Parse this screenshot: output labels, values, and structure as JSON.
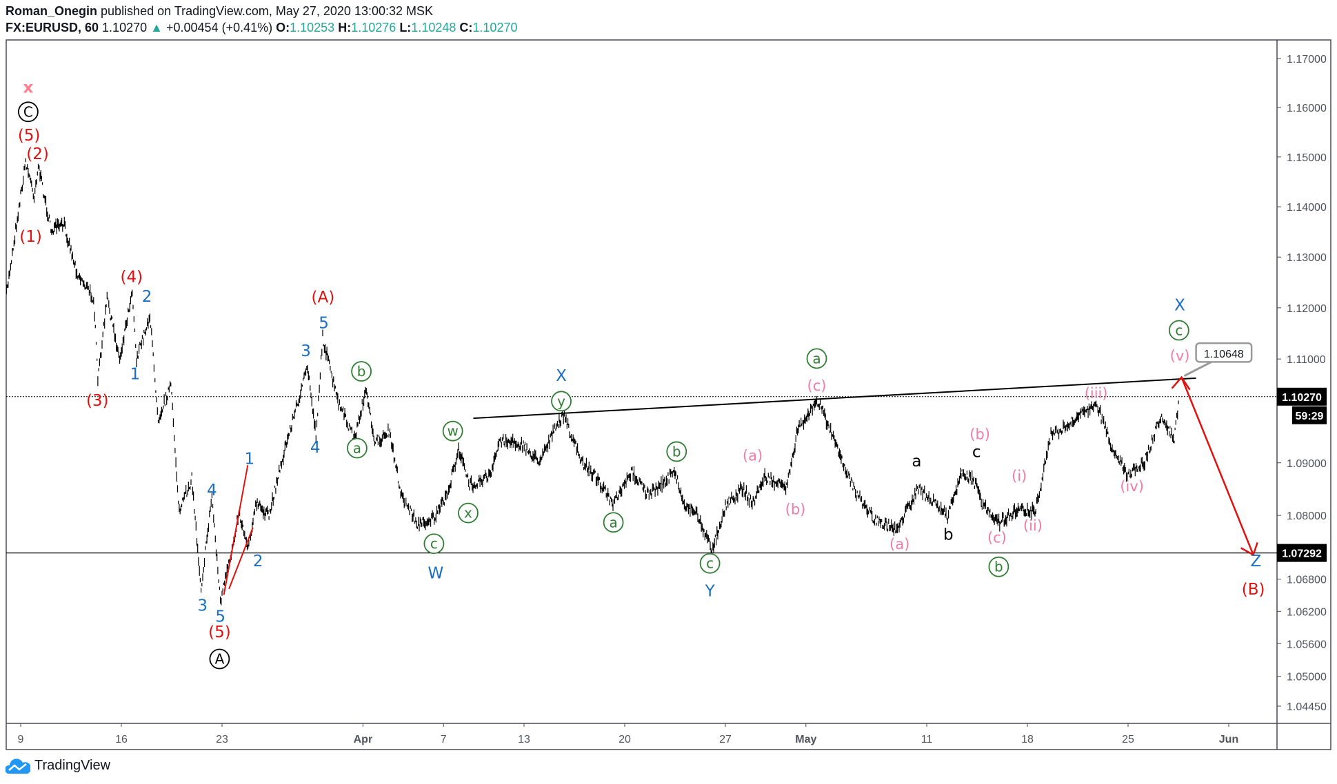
{
  "header": {
    "author": "Roman_Onegin",
    "published": "published on TradingView.com, May 27, 2020 13:00:32 MSK",
    "symbol": "FX:EURUSD, 60",
    "last": "1.10270",
    "change": "+0.00454 (+0.41%)",
    "o_label": "O:",
    "o": "1.10253",
    "h_label": "H:",
    "h": "1.10276",
    "l_label": "L:",
    "l": "1.10248",
    "c_label": "C:",
    "c": "1.10270",
    "up_icon": "triangle-up-icon"
  },
  "footer": {
    "brand": "TradingView",
    "logo_icon": "tradingview-cloud-icon"
  },
  "colors": {
    "up": "#26a69a",
    "red": "#e0110f",
    "blue": "#1a6fc4",
    "green": "#2e7d32",
    "pink": "#f07ca8",
    "black": "#000000",
    "pink_x": "#ff7f8f"
  },
  "chart_data": {
    "type": "candlestick-line",
    "scale": "log",
    "ylim": [
      1.0445,
      1.17
    ],
    "y_ticks": [
      "1.17000",
      "1.16000",
      "1.15000",
      "1.14000",
      "1.13000",
      "1.12000",
      "1.11000",
      "1.09000",
      "1.08000",
      "1.06800",
      "1.06200",
      "1.05600",
      "1.05000",
      "1.04450"
    ],
    "x_ticks": [
      {
        "label": "9",
        "date": "2020-03-09"
      },
      {
        "label": "16",
        "date": "2020-03-16"
      },
      {
        "label": "23",
        "date": "2020-03-23"
      },
      {
        "label": "Apr",
        "date": "2020-04-01"
      },
      {
        "label": "7",
        "date": "2020-04-07"
      },
      {
        "label": "13",
        "date": "2020-04-13"
      },
      {
        "label": "20",
        "date": "2020-04-20"
      },
      {
        "label": "27",
        "date": "2020-04-27"
      },
      {
        "label": "May",
        "date": "2020-05-01"
      },
      {
        "label": "11",
        "date": "2020-05-11"
      },
      {
        "label": "18",
        "date": "2020-05-18"
      },
      {
        "label": "25",
        "date": "2020-05-25"
      },
      {
        "label": "Jun",
        "date": "2020-06-01"
      }
    ],
    "price_path": [
      [
        "2020-03-06 07",
        1.1227
      ],
      [
        "2020-03-06 18",
        1.1354
      ],
      [
        "2020-03-09 06",
        1.1492
      ],
      [
        "2020-03-09 16",
        1.1422
      ],
      [
        "2020-03-09 21",
        1.1483
      ],
      [
        "2020-03-10 12",
        1.1354
      ],
      [
        "2020-03-11 04",
        1.1363
      ],
      [
        "2020-03-11 19",
        1.127
      ],
      [
        "2020-03-12 15",
        1.1219
      ],
      [
        "2020-03-12 20",
        1.1059
      ],
      [
        "2020-03-13 07",
        1.1219
      ],
      [
        "2020-03-13 22",
        1.11
      ],
      [
        "2020-03-16 13",
        1.1236
      ],
      [
        "2020-03-16 18",
        1.11
      ],
      [
        "2020-03-17 10",
        1.1185
      ],
      [
        "2020-03-17 20",
        1.0985
      ],
      [
        "2020-03-18 11",
        1.105
      ],
      [
        "2020-03-18 21",
        1.0806
      ],
      [
        "2020-03-19 12",
        1.087
      ],
      [
        "2020-03-19 23",
        1.0663
      ],
      [
        "2020-03-20 12",
        1.0838
      ],
      [
        "2020-03-20 22",
        1.0638
      ],
      [
        "2020-03-23 10",
        1.072
      ],
      [
        "2020-03-23 20",
        1.0806
      ],
      [
        "2020-03-24 07",
        1.0742
      ],
      [
        "2020-03-24 17",
        1.0822
      ],
      [
        "2020-03-25 08",
        1.0798
      ],
      [
        "2020-03-25 18",
        1.087
      ],
      [
        "2020-03-26 10",
        1.0969
      ],
      [
        "2020-03-27 06",
        1.1084
      ],
      [
        "2020-03-27 16",
        1.0953
      ],
      [
        "2020-03-30 00",
        1.1142
      ],
      [
        "2020-03-30 18",
        1.1018
      ],
      [
        "2020-03-31 14",
        1.0945
      ],
      [
        "2020-04-01 03",
        1.1037
      ],
      [
        "2020-04-01 15",
        1.0936
      ],
      [
        "2020-04-02 07",
        1.0961
      ],
      [
        "2020-04-02 22",
        1.0838
      ],
      [
        "2020-04-03 18",
        1.0782
      ],
      [
        "2020-04-06 15",
        1.0798
      ],
      [
        "2020-04-07 06",
        1.0846
      ],
      [
        "2020-04-07 18",
        1.0928
      ],
      [
        "2020-04-08 07",
        1.0857
      ],
      [
        "2020-04-09 09",
        1.0878
      ],
      [
        "2020-04-09 19",
        1.0944
      ],
      [
        "2020-04-10 20",
        1.0936
      ],
      [
        "2020-04-13 17",
        1.0903
      ],
      [
        "2020-04-14 23",
        1.0993
      ],
      [
        "2020-04-15 20",
        1.0903
      ],
      [
        "2020-04-16 16",
        1.087
      ],
      [
        "2020-04-17 10",
        1.0819
      ],
      [
        "2020-04-20 09",
        1.0883
      ],
      [
        "2020-04-21 05",
        1.0838
      ],
      [
        "2020-04-22 12",
        1.0883
      ],
      [
        "2020-04-22 22",
        1.0822
      ],
      [
        "2020-04-23 13",
        1.0806
      ],
      [
        "2020-04-24 08",
        1.0734
      ],
      [
        "2020-04-27 01",
        1.0822
      ],
      [
        "2020-04-27 21",
        1.0851
      ],
      [
        "2020-04-28 08",
        1.0822
      ],
      [
        "2020-04-28 23",
        1.0873
      ],
      [
        "2020-04-30 00",
        1.0851
      ],
      [
        "2020-04-30 15",
        1.0969
      ],
      [
        "2020-05-01 15",
        1.1018
      ],
      [
        "2020-05-04 18",
        1.0911
      ],
      [
        "2020-05-05 10",
        1.0846
      ],
      [
        "2020-05-06 11",
        1.079
      ],
      [
        "2020-05-07 12",
        1.0774
      ],
      [
        "2020-05-08 14",
        1.0851
      ],
      [
        "2020-05-11 10",
        1.0822
      ],
      [
        "2020-05-12 01",
        1.0798
      ],
      [
        "2020-05-12 17",
        1.0878
      ],
      [
        "2020-05-13 08",
        1.0867
      ],
      [
        "2020-05-13 18",
        1.0822
      ],
      [
        "2020-05-14 15",
        1.0787
      ],
      [
        "2020-05-15 16",
        1.0814
      ],
      [
        "2020-05-18 09",
        1.0806
      ],
      [
        "2020-05-19 04",
        1.0953
      ],
      [
        "2020-05-20 00",
        1.0969
      ],
      [
        "2020-05-20 15",
        1.0993
      ],
      [
        "2020-05-21 12",
        1.1007
      ],
      [
        "2020-05-22 03",
        1.0936
      ],
      [
        "2020-05-22 23",
        1.0878
      ],
      [
        "2020-05-25 20",
        1.0903
      ],
      [
        "2020-05-26 16",
        1.0993
      ],
      [
        "2020-05-27 07",
        1.0944
      ],
      [
        "2020-05-27 13",
        1.1027
      ]
    ],
    "last_price": "1.10270",
    "countdown": "59:29",
    "horizontal_level": "1.07292",
    "price_note": "1.10648",
    "wave_labels": [
      {
        "t": "x",
        "c": "pink_x"
      },
      {
        "t": "C",
        "c": "black",
        "circle": true
      },
      {
        "t": "(5)",
        "c": "red"
      },
      {
        "t": "(2)",
        "c": "red"
      },
      {
        "t": "(1)",
        "c": "red"
      },
      {
        "t": "(4)",
        "c": "red"
      },
      {
        "t": "(3)",
        "c": "red"
      },
      {
        "t": "(A)",
        "c": "red"
      },
      {
        "t": "(5)",
        "c": "red"
      },
      {
        "t": "A",
        "c": "black",
        "circle": true
      },
      {
        "t": "(B)",
        "c": "red"
      },
      {
        "t": "2",
        "c": "blue"
      },
      {
        "t": "1",
        "c": "blue"
      },
      {
        "t": "4",
        "c": "blue"
      },
      {
        "t": "3",
        "c": "blue"
      },
      {
        "t": "5",
        "c": "blue"
      },
      {
        "t": "1",
        "c": "blue"
      },
      {
        "t": "2",
        "c": "blue"
      },
      {
        "t": "3",
        "c": "blue"
      },
      {
        "t": "5",
        "c": "blue"
      },
      {
        "t": "4",
        "c": "blue"
      },
      {
        "t": "X",
        "c": "blue"
      },
      {
        "t": "W",
        "c": "blue"
      },
      {
        "t": "Y",
        "c": "blue"
      },
      {
        "t": "X",
        "c": "blue"
      },
      {
        "t": "Z",
        "c": "blue"
      },
      {
        "t": "b",
        "c": "green",
        "circle": true
      },
      {
        "t": "a",
        "c": "green",
        "circle": true
      },
      {
        "t": "w",
        "c": "green",
        "circle": true
      },
      {
        "t": "x",
        "c": "green",
        "circle": true
      },
      {
        "t": "c",
        "c": "green",
        "circle": true
      },
      {
        "t": "y",
        "c": "green",
        "circle": true
      },
      {
        "t": "b",
        "c": "green",
        "circle": true
      },
      {
        "t": "a",
        "c": "green",
        "circle": true
      },
      {
        "t": "c",
        "c": "green",
        "circle": true
      },
      {
        "t": "a",
        "c": "green",
        "circle": true
      },
      {
        "t": "b",
        "c": "green",
        "circle": true
      },
      {
        "t": "c",
        "c": "green",
        "circle": true
      },
      {
        "t": "(a)",
        "c": "pink"
      },
      {
        "t": "(b)",
        "c": "pink"
      },
      {
        "t": "(c)",
        "c": "pink"
      },
      {
        "t": "(a)",
        "c": "pink"
      },
      {
        "t": "(b)",
        "c": "pink"
      },
      {
        "t": "(c)",
        "c": "pink"
      },
      {
        "t": "(i)",
        "c": "pink"
      },
      {
        "t": "(ii)",
        "c": "pink"
      },
      {
        "t": "(iii)",
        "c": "pink"
      },
      {
        "t": "(iv)",
        "c": "pink"
      },
      {
        "t": "(v)",
        "c": "pink"
      },
      {
        "t": "a",
        "c": "black"
      },
      {
        "t": "b",
        "c": "black"
      },
      {
        "t": "c",
        "c": "black"
      }
    ]
  }
}
